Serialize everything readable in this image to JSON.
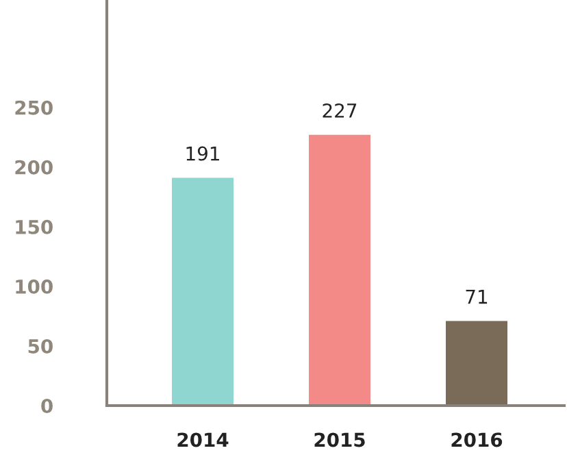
{
  "chart_data": {
    "type": "bar",
    "categories": [
      "2014",
      "2015",
      "2016"
    ],
    "values": [
      191,
      227,
      71
    ],
    "colors": [
      "#8fd6d0",
      "#f48a88",
      "#7a6a58"
    ],
    "ylim": [
      0,
      340
    ],
    "yticks": [
      0,
      {
        "value": 25,
        "label": null
      },
      50,
      {
        "value": 75,
        "label": null
      },
      100,
      {
        "value": 125,
        "label": null
      },
      150,
      {
        "value": 175,
        "label": null
      },
      200,
      {
        "value": 225,
        "label": null
      },
      250,
      {
        "value": 275,
        "label": null
      },
      {
        "value": 300,
        "label": null
      },
      {
        "value": 325,
        "label": null
      }
    ],
    "data_labels": true,
    "grid": false,
    "legend": false
  }
}
